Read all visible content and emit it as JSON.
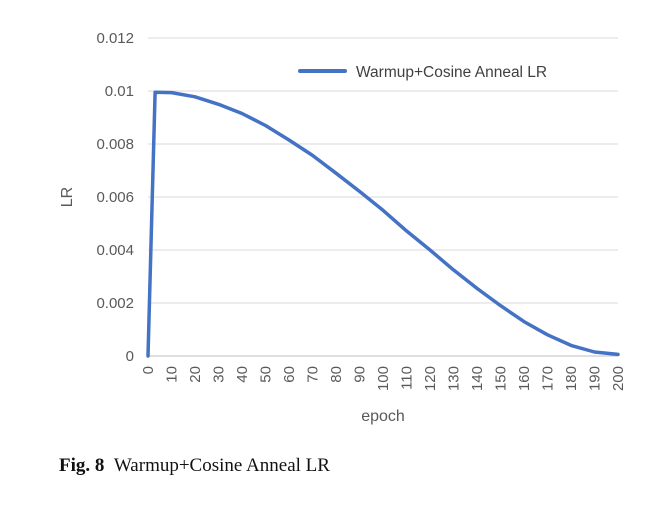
{
  "chart_data": {
    "type": "line",
    "title": "",
    "xlabel": "epoch",
    "ylabel": "LR",
    "xlim": [
      0,
      200
    ],
    "ylim": [
      0,
      0.012
    ],
    "grid": true,
    "legend_position": "top-right",
    "y_ticks": [
      "0",
      "0.002",
      "0.004",
      "0.006",
      "0.008",
      "0.01",
      "0.012"
    ],
    "y_tick_values": [
      0,
      0.002,
      0.004,
      0.006,
      0.008,
      0.01,
      0.012
    ],
    "x_ticks": [
      "0",
      "10",
      "20",
      "30",
      "40",
      "50",
      "60",
      "70",
      "80",
      "90",
      "100",
      "110",
      "120",
      "130",
      "140",
      "150",
      "160",
      "170",
      "180",
      "190",
      "200"
    ],
    "x_tick_values": [
      0,
      10,
      20,
      30,
      40,
      50,
      60,
      70,
      80,
      90,
      100,
      110,
      120,
      130,
      140,
      150,
      160,
      170,
      180,
      190,
      200
    ],
    "series": [
      {
        "name": "Warmup+Cosine Anneal LR",
        "color": "#4472c4",
        "x": [
          0,
          3,
          10,
          20,
          30,
          40,
          50,
          60,
          70,
          80,
          90,
          100,
          110,
          120,
          130,
          140,
          150,
          160,
          170,
          180,
          190,
          200
        ],
        "values": [
          0,
          0.00995,
          0.00994,
          0.00978,
          0.0095,
          0.00915,
          0.0087,
          0.00815,
          0.00757,
          0.0069,
          0.00621,
          0.0055,
          0.00472,
          0.004,
          0.00325,
          0.00255,
          0.0019,
          0.0013,
          0.0008,
          0.0004,
          0.00015,
          6e-05
        ]
      }
    ]
  },
  "caption": {
    "label": "Fig. 8",
    "text": "Warmup+Cosine Anneal LR"
  }
}
